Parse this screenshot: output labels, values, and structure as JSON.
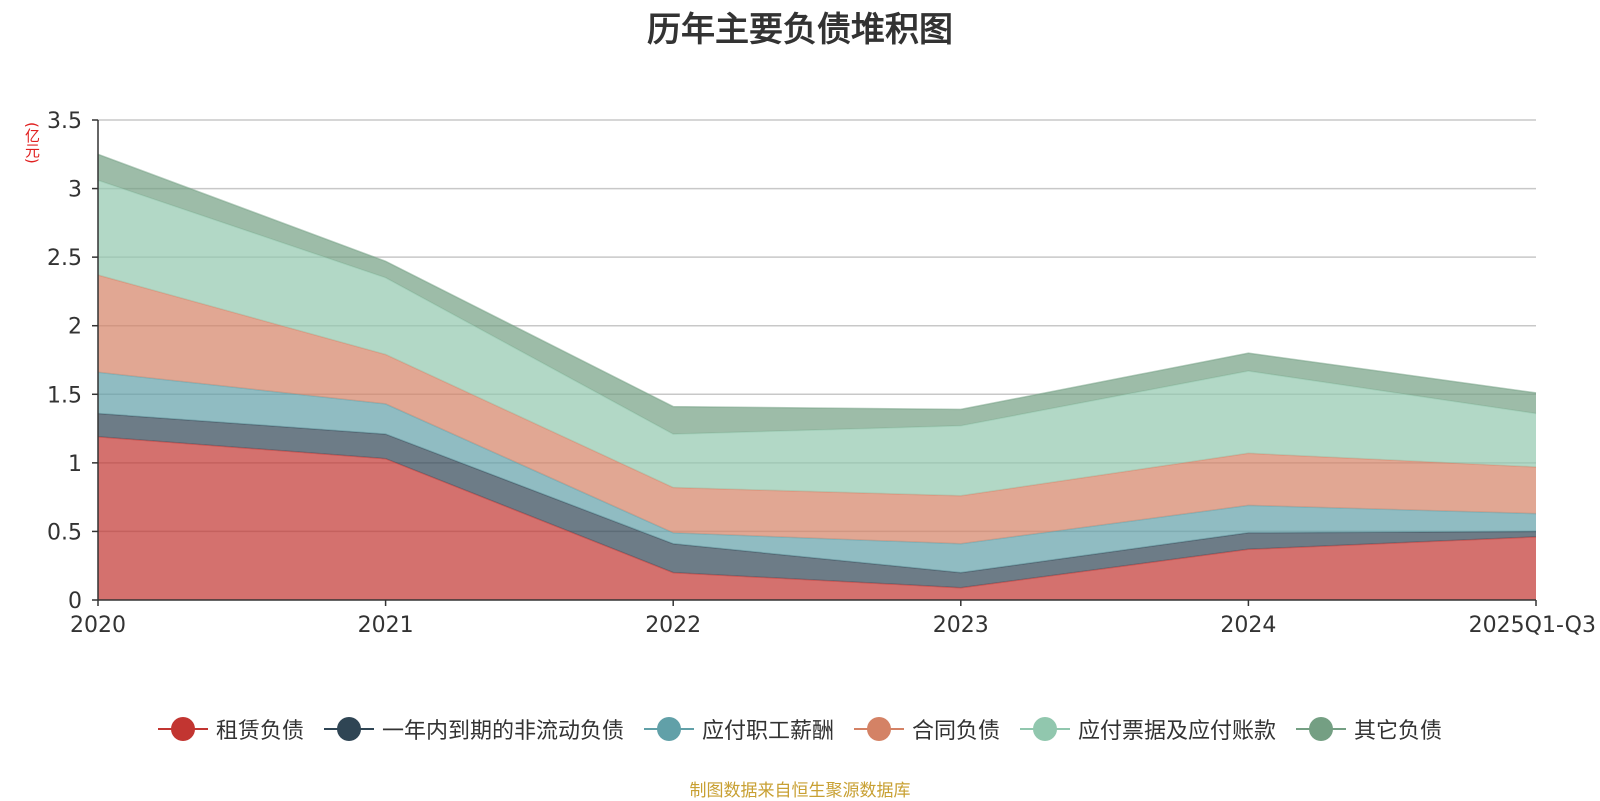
{
  "chart_data": {
    "type": "area",
    "stacked": true,
    "title": "历年主要负债堆积图",
    "unit": "(亿元)",
    "categories": [
      "2020",
      "2021",
      "2022",
      "2023",
      "2024",
      "2025Q1-Q3"
    ],
    "ylim": [
      0,
      3.5
    ],
    "yticks": [
      "0",
      "0.5",
      "1",
      "1.5",
      "2",
      "2.5",
      "3",
      "3.5"
    ],
    "grid": true,
    "legend_position": "bottom",
    "series": [
      {
        "name": "租赁负债",
        "color": "#c23531",
        "values": [
          1.19,
          1.03,
          0.2,
          0.09,
          0.37,
          0.46
        ]
      },
      {
        "name": "一年内到期的非流动负债",
        "color": "#2f4554",
        "values": [
          0.17,
          0.18,
          0.21,
          0.11,
          0.12,
          0.04
        ]
      },
      {
        "name": "应付职工薪酬",
        "color": "#61a0a8",
        "values": [
          0.3,
          0.22,
          0.08,
          0.21,
          0.2,
          0.13
        ]
      },
      {
        "name": "合同负债",
        "color": "#d48265",
        "values": [
          0.71,
          0.36,
          0.33,
          0.35,
          0.38,
          0.34
        ]
      },
      {
        "name": "应付票据及应付账款",
        "color": "#91c7ae",
        "values": [
          0.69,
          0.56,
          0.39,
          0.51,
          0.6,
          0.39
        ]
      },
      {
        "name": "其它负债",
        "color": "#749f83",
        "values": [
          0.19,
          0.12,
          0.2,
          0.12,
          0.13,
          0.15
        ]
      }
    ]
  },
  "source_note": "制图数据来自恒生聚源数据库"
}
